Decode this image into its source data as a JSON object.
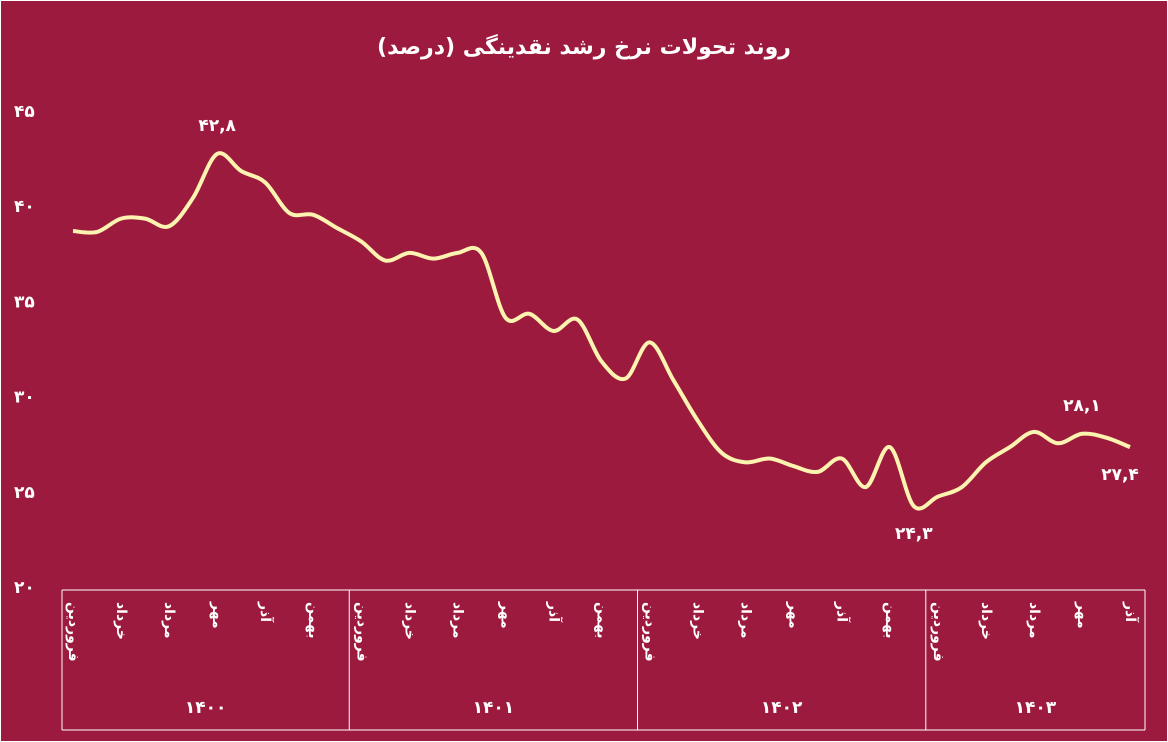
{
  "chart_data": {
    "type": "line",
    "title": "روند تحولات نرخ رشد نقدینگی (درصد)",
    "categories": [
      "فروردین",
      null,
      "خرداد",
      null,
      "مرداد",
      null,
      "مهر",
      null,
      "آذر",
      null,
      "بهمن",
      null,
      "فروردین",
      null,
      "خرداد",
      null,
      "مرداد",
      null,
      "مهر",
      null,
      "آذر",
      null,
      "بهمن",
      null,
      "فروردین",
      null,
      "خرداد",
      null,
      "مرداد",
      null,
      "مهر",
      null,
      "آذر",
      null,
      "بهمن",
      null,
      "فروردین",
      null,
      "خرداد",
      null,
      "مرداد",
      null,
      "مهر",
      null,
      "آذر"
    ],
    "x_groups": [
      "۱۴۰۰",
      "۱۴۰۱",
      "۱۴۰۲",
      "۱۴۰۳"
    ],
    "series": [
      {
        "name": null,
        "color": "#fdf3b0",
        "values": [
          38.75,
          38.7,
          39.4,
          39.4,
          39.0,
          40.5,
          42.8,
          41.9,
          41.3,
          39.7,
          39.6,
          38.9,
          38.2,
          37.2,
          37.6,
          37.3,
          37.6,
          37.6,
          34.2,
          34.4,
          33.5,
          34.1,
          31.9,
          31.0,
          32.9,
          30.9,
          28.8,
          27.1,
          26.6,
          26.8,
          26.4,
          26.1,
          26.8,
          25.3,
          27.4,
          24.3,
          24.8,
          25.3,
          26.6,
          27.4,
          28.2,
          27.6,
          28.1,
          27.9,
          27.4
        ],
        "value_labels": [
          null,
          null,
          null,
          null,
          null,
          null,
          "۴۲,۸",
          null,
          null,
          null,
          null,
          null,
          null,
          null,
          null,
          null,
          null,
          null,
          null,
          null,
          null,
          null,
          null,
          null,
          null,
          null,
          null,
          null,
          null,
          null,
          null,
          null,
          null,
          null,
          null,
          "۲۴,۳",
          null,
          null,
          null,
          null,
          null,
          null,
          "۲۸,۱",
          null,
          "۲۷,۴"
        ]
      }
    ],
    "ylim": [
      20,
      45
    ],
    "yticks": [
      {
        "value": 20,
        "label": "۲۰"
      },
      {
        "value": 25,
        "label": "۲۵"
      },
      {
        "value": 30,
        "label": "۳۰"
      },
      {
        "value": 35,
        "label": "۳۵"
      },
      {
        "value": 40,
        "label": "۴۰"
      },
      {
        "value": 45,
        "label": "۴۵"
      }
    ]
  }
}
